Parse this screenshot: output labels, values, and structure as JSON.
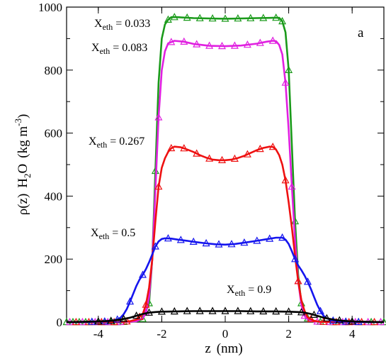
{
  "chart_data": {
    "type": "line",
    "panel_label": "a",
    "xlabel": {
      "main": "z",
      "unit": "(nm)"
    },
    "ylabel": {
      "prefix": "ρ(z)",
      "species": "H",
      "species_sub": "2",
      "species_end": "O",
      "unit_open": "(kg m",
      "unit_sup": "-3",
      "unit_close": ")"
    },
    "xlim": [
      -5,
      5
    ],
    "ylim": [
      0,
      1000
    ],
    "x_ticks": [
      -4,
      -2,
      0,
      2,
      4
    ],
    "y_ticks": [
      0,
      200,
      400,
      600,
      800,
      1000
    ],
    "grid": false,
    "series": [
      {
        "name": "X_eth = 0.033",
        "label_main": "X",
        "label_sub": "eth",
        "label_value": " = 0.033",
        "color": "#1a9a1a",
        "points": [
          [
            -5,
            0
          ],
          [
            -4.6,
            0
          ],
          [
            -4.2,
            0
          ],
          [
            -3.8,
            0
          ],
          [
            -3.4,
            0
          ],
          [
            -3.0,
            1
          ],
          [
            -2.8,
            2
          ],
          [
            -2.6,
            10
          ],
          [
            -2.4,
            60
          ],
          [
            -2.3,
            200
          ],
          [
            -2.2,
            480
          ],
          [
            -2.1,
            760
          ],
          [
            -2.0,
            900
          ],
          [
            -1.9,
            945
          ],
          [
            -1.8,
            960
          ],
          [
            -1.7,
            968
          ],
          [
            -1.5,
            968
          ],
          [
            -1.0,
            965
          ],
          [
            -0.5,
            964
          ],
          [
            0,
            963
          ],
          [
            0.5,
            964
          ],
          [
            1.0,
            965
          ],
          [
            1.5,
            966
          ],
          [
            1.7,
            966
          ],
          [
            1.8,
            955
          ],
          [
            1.9,
            920
          ],
          [
            2.0,
            800
          ],
          [
            2.1,
            560
          ],
          [
            2.2,
            320
          ],
          [
            2.3,
            150
          ],
          [
            2.4,
            60
          ],
          [
            2.6,
            12
          ],
          [
            2.8,
            3
          ],
          [
            3.0,
            1
          ],
          [
            3.4,
            0
          ],
          [
            3.8,
            0
          ],
          [
            4.2,
            0
          ],
          [
            4.6,
            0
          ],
          [
            5,
            0
          ]
        ],
        "markers": [
          -5,
          -4.8,
          -4.6,
          -4.4,
          -4.2,
          -4.0,
          -3.8,
          -3.6,
          -3.4,
          -3.2,
          -2.6,
          -2.4,
          -2.2,
          -1.8,
          -1.6,
          -1.2,
          -0.8,
          -0.4,
          0,
          0.4,
          0.8,
          1.2,
          1.6,
          1.8,
          2.0,
          2.2,
          2.4,
          2.6,
          3.0,
          3.4,
          3.8,
          4.2,
          4.6,
          5.0
        ]
      },
      {
        "name": "X_eth = 0.083",
        "label_main": "X",
        "label_sub": "eth",
        "label_value": " = 0.083",
        "color": "#e020e0",
        "points": [
          [
            -5,
            0
          ],
          [
            -4.6,
            0
          ],
          [
            -4.2,
            0
          ],
          [
            -3.8,
            0
          ],
          [
            -3.4,
            0
          ],
          [
            -3.0,
            1
          ],
          [
            -2.8,
            3
          ],
          [
            -2.6,
            12
          ],
          [
            -2.5,
            30
          ],
          [
            -2.4,
            80
          ],
          [
            -2.3,
            200
          ],
          [
            -2.2,
            420
          ],
          [
            -2.1,
            650
          ],
          [
            -2.0,
            800
          ],
          [
            -1.9,
            860
          ],
          [
            -1.8,
            885
          ],
          [
            -1.6,
            893
          ],
          [
            -1.3,
            890
          ],
          [
            -1.0,
            883
          ],
          [
            -0.5,
            877
          ],
          [
            0,
            876
          ],
          [
            0.5,
            878
          ],
          [
            1.0,
            884
          ],
          [
            1.3,
            890
          ],
          [
            1.5,
            893
          ],
          [
            1.6,
            892
          ],
          [
            1.7,
            880
          ],
          [
            1.8,
            850
          ],
          [
            1.9,
            760
          ],
          [
            2.0,
            610
          ],
          [
            2.1,
            430
          ],
          [
            2.2,
            260
          ],
          [
            2.3,
            130
          ],
          [
            2.4,
            55
          ],
          [
            2.5,
            20
          ],
          [
            2.6,
            8
          ],
          [
            2.8,
            2
          ],
          [
            3.0,
            1
          ],
          [
            3.4,
            0
          ],
          [
            3.8,
            0
          ],
          [
            4.2,
            0
          ],
          [
            4.6,
            0
          ],
          [
            5,
            0
          ]
        ],
        "markers": [
          -4.9,
          -4.5,
          -4.1,
          -3.7,
          -3.3,
          -2.5,
          -2.1,
          -1.7,
          -1.3,
          -0.9,
          -0.5,
          -0.1,
          0.3,
          0.7,
          1.1,
          1.5,
          1.9,
          2.1,
          2.3,
          2.5,
          2.9,
          3.3,
          3.7,
          4.1,
          4.5,
          4.9
        ]
      },
      {
        "name": "X_eth = 0.267",
        "label_main": "X",
        "label_sub": "eth",
        "label_value": " = 0.267",
        "color": "#ee1111",
        "points": [
          [
            -5,
            0
          ],
          [
            -4.6,
            0
          ],
          [
            -4.2,
            0
          ],
          [
            -3.8,
            0
          ],
          [
            -3.4,
            0
          ],
          [
            -3.2,
            1
          ],
          [
            -3.0,
            3
          ],
          [
            -2.8,
            8
          ],
          [
            -2.6,
            25
          ],
          [
            -2.5,
            55
          ],
          [
            -2.4,
            110
          ],
          [
            -2.3,
            200
          ],
          [
            -2.2,
            320
          ],
          [
            -2.1,
            430
          ],
          [
            -2.0,
            490
          ],
          [
            -1.9,
            520
          ],
          [
            -1.8,
            540
          ],
          [
            -1.7,
            552
          ],
          [
            -1.6,
            557
          ],
          [
            -1.4,
            555
          ],
          [
            -1.2,
            548
          ],
          [
            -1.0,
            540
          ],
          [
            -0.8,
            530
          ],
          [
            -0.6,
            522
          ],
          [
            -0.4,
            516
          ],
          [
            -0.2,
            514
          ],
          [
            0,
            514
          ],
          [
            0.2,
            516
          ],
          [
            0.4,
            521
          ],
          [
            0.6,
            528
          ],
          [
            0.8,
            537
          ],
          [
            1.0,
            546
          ],
          [
            1.2,
            553
          ],
          [
            1.4,
            557
          ],
          [
            1.5,
            556
          ],
          [
            1.6,
            548
          ],
          [
            1.7,
            530
          ],
          [
            1.8,
            500
          ],
          [
            1.9,
            450
          ],
          [
            2.0,
            380
          ],
          [
            2.1,
            300
          ],
          [
            2.2,
            210
          ],
          [
            2.3,
            130
          ],
          [
            2.4,
            70
          ],
          [
            2.5,
            35
          ],
          [
            2.6,
            15
          ],
          [
            2.8,
            4
          ],
          [
            3.0,
            1
          ],
          [
            3.4,
            0
          ],
          [
            3.8,
            0
          ],
          [
            4.2,
            0
          ],
          [
            4.6,
            0
          ],
          [
            5,
            0
          ]
        ],
        "markers": [
          -4.7,
          -4.3,
          -3.9,
          -3.5,
          -3.1,
          -2.7,
          -2.5,
          -2.1,
          -1.7,
          -1.3,
          -0.9,
          -0.5,
          -0.1,
          0.3,
          0.7,
          1.1,
          1.5,
          1.9,
          2.3,
          2.7,
          3.1,
          3.5,
          3.9,
          4.3,
          4.7
        ]
      },
      {
        "name": "X_eth = 0.5",
        "label_main": "X",
        "label_sub": "eth",
        "label_value": " = 0.5",
        "color": "#1515ee",
        "points": [
          [
            -5,
            0
          ],
          [
            -4.6,
            0
          ],
          [
            -4.2,
            1
          ],
          [
            -3.8,
            2
          ],
          [
            -3.6,
            4
          ],
          [
            -3.4,
            8
          ],
          [
            -3.3,
            14
          ],
          [
            -3.2,
            25
          ],
          [
            -3.1,
            42
          ],
          [
            -3.0,
            65
          ],
          [
            -2.9,
            90
          ],
          [
            -2.8,
            115
          ],
          [
            -2.7,
            135
          ],
          [
            -2.6,
            150
          ],
          [
            -2.5,
            168
          ],
          [
            -2.4,
            190
          ],
          [
            -2.3,
            215
          ],
          [
            -2.2,
            240
          ],
          [
            -2.1,
            256
          ],
          [
            -2.0,
            264
          ],
          [
            -1.9,
            266
          ],
          [
            -1.7,
            265
          ],
          [
            -1.5,
            262
          ],
          [
            -1.2,
            258
          ],
          [
            -1.0,
            255
          ],
          [
            -0.6,
            250
          ],
          [
            -0.3,
            247
          ],
          [
            0,
            246
          ],
          [
            0.3,
            248
          ],
          [
            0.6,
            252
          ],
          [
            1.0,
            258
          ],
          [
            1.3,
            263
          ],
          [
            1.6,
            268
          ],
          [
            1.8,
            268
          ],
          [
            1.9,
            262
          ],
          [
            2.0,
            248
          ],
          [
            2.1,
            225
          ],
          [
            2.2,
            200
          ],
          [
            2.3,
            180
          ],
          [
            2.4,
            165
          ],
          [
            2.5,
            148
          ],
          [
            2.6,
            128
          ],
          [
            2.7,
            105
          ],
          [
            2.8,
            80
          ],
          [
            2.9,
            55
          ],
          [
            3.0,
            35
          ],
          [
            3.1,
            20
          ],
          [
            3.2,
            12
          ],
          [
            3.4,
            5
          ],
          [
            3.6,
            2
          ],
          [
            4.0,
            1
          ],
          [
            4.4,
            0
          ],
          [
            5,
            0
          ]
        ],
        "markers": [
          -4.2,
          -3.8,
          -3.4,
          -3.0,
          -2.6,
          -2.2,
          -1.8,
          -1.4,
          -1.0,
          -0.6,
          -0.2,
          0.2,
          0.6,
          1.0,
          1.4,
          1.8,
          2.2,
          2.6,
          3.0,
          3.4,
          3.8,
          4.2
        ]
      },
      {
        "name": "X_eth = 0.9",
        "label_main": "X",
        "label_sub": "eth",
        "label_value": " = 0.9",
        "color": "#000000",
        "points": [
          [
            -5,
            0
          ],
          [
            -4.5,
            1
          ],
          [
            -4.0,
            2
          ],
          [
            -3.6,
            4
          ],
          [
            -3.3,
            8
          ],
          [
            -3.0,
            14
          ],
          [
            -2.8,
            20
          ],
          [
            -2.6,
            26
          ],
          [
            -2.4,
            30
          ],
          [
            -2.2,
            32
          ],
          [
            -2.0,
            33
          ],
          [
            -1.5,
            34
          ],
          [
            -1.0,
            35
          ],
          [
            -0.5,
            35
          ],
          [
            0,
            35
          ],
          [
            0.5,
            35
          ],
          [
            1.0,
            34
          ],
          [
            1.5,
            34
          ],
          [
            2.0,
            33
          ],
          [
            2.3,
            32
          ],
          [
            2.5,
            30
          ],
          [
            2.7,
            26
          ],
          [
            2.9,
            20
          ],
          [
            3.1,
            14
          ],
          [
            3.4,
            8
          ],
          [
            3.7,
            4
          ],
          [
            4.0,
            2
          ],
          [
            4.5,
            1
          ],
          [
            5,
            0
          ]
        ],
        "markers": [
          -4.0,
          -3.6,
          -3.2,
          -2.8,
          -2.4,
          -2.0,
          -1.6,
          -1.2,
          -0.8,
          -0.4,
          0,
          0.4,
          0.8,
          1.2,
          1.6,
          2.0,
          2.4,
          2.8,
          3.2,
          3.6,
          4.0
        ]
      }
    ]
  }
}
